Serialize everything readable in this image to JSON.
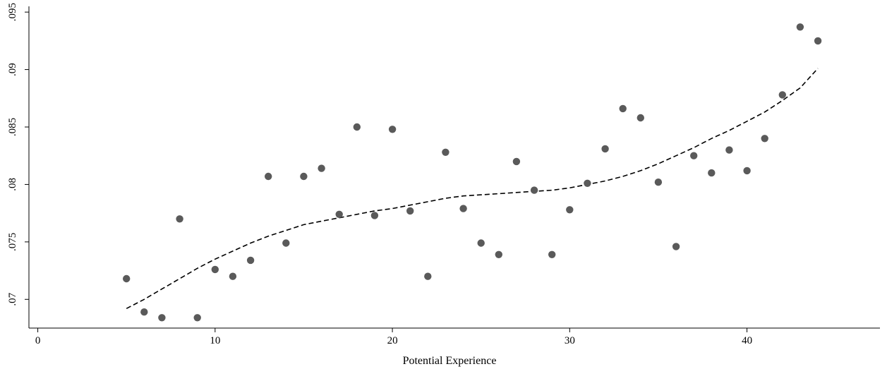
{
  "chart_data": {
    "type": "scatter",
    "title": "",
    "xlabel": "Potential Experience",
    "ylabel": "",
    "xlim": [
      -0.5,
      47.5
    ],
    "ylim": [
      0.0675,
      0.0955
    ],
    "xticks": [
      0,
      10,
      20,
      30,
      40
    ],
    "xtick_labels": [
      "0",
      "10",
      "20",
      "30",
      "40"
    ],
    "yticks": [
      0.07,
      0.075,
      0.08,
      0.085,
      0.09,
      0.095
    ],
    "ytick_labels": [
      ".07",
      ".075",
      ".08",
      ".085",
      ".09",
      ".095"
    ],
    "grid": false,
    "legend": "none",
    "series": [
      {
        "kind": "points",
        "color": "#5a5a5a",
        "x": [
          5,
          6,
          7,
          8,
          9,
          10,
          11,
          12,
          13,
          14,
          15,
          16,
          17,
          18,
          19,
          20,
          21,
          22,
          23,
          24,
          25,
          26,
          27,
          28,
          29,
          30,
          31,
          32,
          33,
          34,
          35,
          36,
          37,
          38,
          39,
          40,
          41,
          42,
          43,
          44
        ],
        "y": [
          0.0718,
          0.0689,
          0.0684,
          0.077,
          0.0684,
          0.0726,
          0.072,
          0.0734,
          0.0807,
          0.0749,
          0.0807,
          0.0814,
          0.0774,
          0.085,
          0.0773,
          0.0848,
          0.0777,
          0.072,
          0.0828,
          0.0779,
          0.0749,
          0.0739,
          0.082,
          0.0795,
          0.0739,
          0.0778,
          0.0801,
          0.0831,
          0.0866,
          0.0858,
          0.0802,
          0.0746,
          0.0825,
          0.081,
          0.083,
          0.0812,
          0.084,
          0.0878,
          0.0937,
          0.0925
        ]
      },
      {
        "kind": "fit-line",
        "style": "dashed",
        "color": "#000000",
        "x": [
          5,
          6,
          7,
          8,
          9,
          10,
          11,
          12,
          13,
          14,
          15,
          16,
          17,
          18,
          19,
          20,
          21,
          22,
          23,
          24,
          25,
          26,
          27,
          28,
          29,
          30,
          31,
          32,
          33,
          34,
          35,
          36,
          37,
          38,
          39,
          40,
          41,
          42,
          43,
          44
        ],
        "y": [
          0.0692,
          0.07,
          0.0709,
          0.0718,
          0.0727,
          0.0735,
          0.0742,
          0.0749,
          0.0755,
          0.076,
          0.0765,
          0.0768,
          0.0771,
          0.0774,
          0.0777,
          0.0779,
          0.0782,
          0.0785,
          0.0788,
          0.079,
          0.0791,
          0.0792,
          0.0793,
          0.0794,
          0.0795,
          0.0797,
          0.08,
          0.0803,
          0.0807,
          0.0812,
          0.0818,
          0.0825,
          0.0832,
          0.084,
          0.0847,
          0.0855,
          0.0863,
          0.0873,
          0.0884,
          0.0901
        ]
      }
    ]
  }
}
